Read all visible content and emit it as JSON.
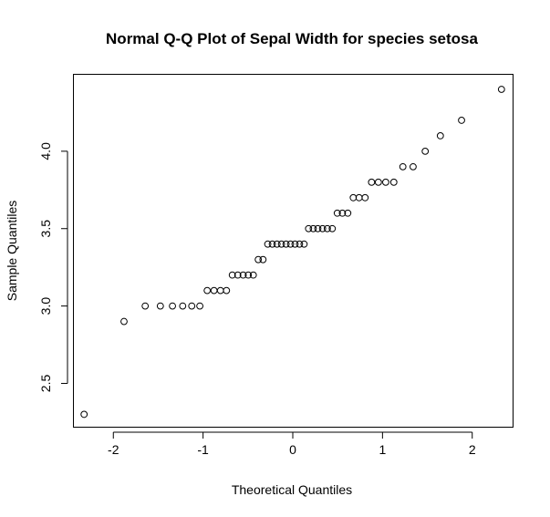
{
  "chart_data": {
    "type": "scatter",
    "title": "Normal Q-Q Plot of Sepal Width for species setosa",
    "xlabel": "Theoretical Quantiles",
    "ylabel": "Sample Quantiles",
    "xlim": [
      -2.45,
      2.45
    ],
    "ylim": [
      2.22,
      4.5
    ],
    "x_ticks": [
      -2,
      -1,
      0,
      1,
      2
    ],
    "y_ticks": [
      2.5,
      3.0,
      3.5,
      4.0
    ],
    "x_tick_labels": [
      "-2",
      "-1",
      "0",
      "1",
      "2"
    ],
    "y_tick_labels": [
      "2.5",
      "3.0",
      "3.5",
      "4.0"
    ],
    "grid": false,
    "legend": "none",
    "marker": "open-circle",
    "points": {
      "x": [
        -2.326,
        -1.881,
        -1.645,
        -1.476,
        -1.341,
        -1.227,
        -1.126,
        -1.036,
        -0.954,
        -0.878,
        -0.806,
        -0.739,
        -0.674,
        -0.613,
        -0.553,
        -0.496,
        -0.44,
        -0.385,
        -0.332,
        -0.279,
        -0.228,
        -0.176,
        -0.126,
        -0.075,
        -0.025,
        0.025,
        0.075,
        0.126,
        0.176,
        0.228,
        0.279,
        0.332,
        0.385,
        0.44,
        0.496,
        0.553,
        0.613,
        0.674,
        0.739,
        0.806,
        0.878,
        0.954,
        1.036,
        1.126,
        1.227,
        1.341,
        1.476,
        1.645,
        1.881,
        2.326
      ],
      "y": [
        2.3,
        2.9,
        3.0,
        3.0,
        3.0,
        3.0,
        3.0,
        3.0,
        3.1,
        3.1,
        3.1,
        3.1,
        3.2,
        3.2,
        3.2,
        3.2,
        3.2,
        3.3,
        3.3,
        3.4,
        3.4,
        3.4,
        3.4,
        3.4,
        3.4,
        3.4,
        3.4,
        3.4,
        3.5,
        3.5,
        3.5,
        3.5,
        3.5,
        3.5,
        3.6,
        3.6,
        3.6,
        3.7,
        3.7,
        3.7,
        3.8,
        3.8,
        3.8,
        3.8,
        3.9,
        3.9,
        4.0,
        4.1,
        4.2,
        4.4
      ]
    }
  }
}
